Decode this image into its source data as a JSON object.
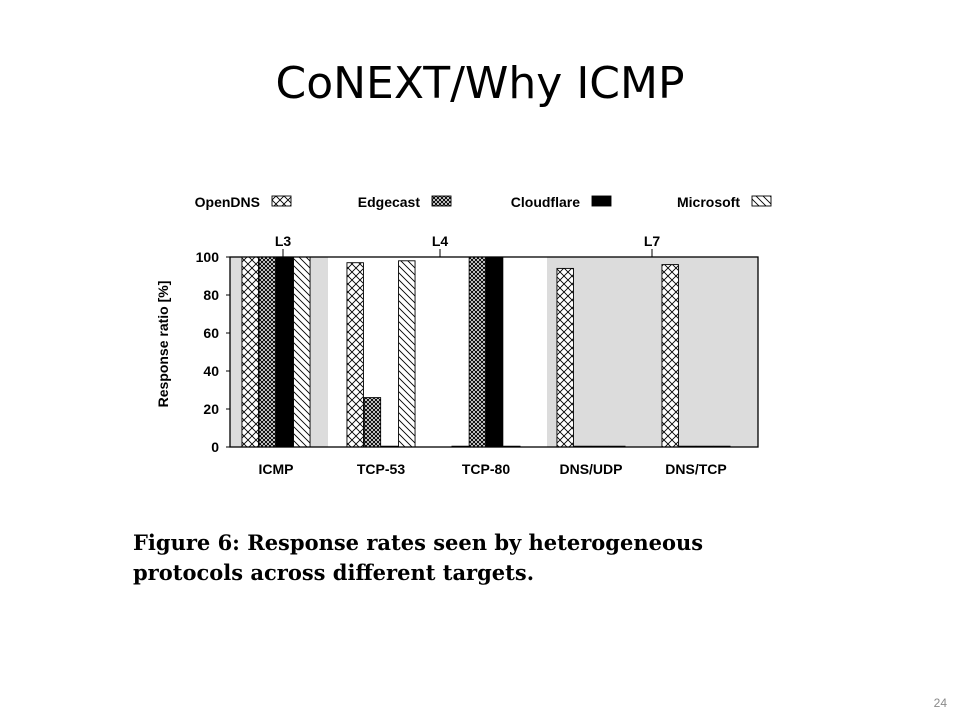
{
  "slide": {
    "title": "CoNEXT/Why ICMP",
    "caption_line1": "Figure 6: Response rates seen by heterogeneous",
    "caption_line2": "protocols across different targets.",
    "page_number": "24"
  },
  "chart_data": {
    "type": "bar",
    "ylabel": "Response ratio [%]",
    "ylim": [
      0,
      100
    ],
    "yticks": [
      0,
      20,
      40,
      60,
      80,
      100
    ],
    "categories": [
      "ICMP",
      "TCP-53",
      "TCP-80",
      "DNS/UDP",
      "DNS/TCP"
    ],
    "layers": [
      {
        "label": "L3",
        "categories": [
          "ICMP"
        ],
        "shaded": true
      },
      {
        "label": "L4",
        "categories": [
          "TCP-53",
          "TCP-80"
        ],
        "shaded": false
      },
      {
        "label": "L7",
        "categories": [
          "DNS/UDP",
          "DNS/TCP"
        ],
        "shaded": true
      }
    ],
    "legend_position": "top",
    "series": [
      {
        "name": "OpenDNS",
        "pattern": "crosshatch",
        "values": [
          100,
          97,
          0,
          94,
          96
        ]
      },
      {
        "name": "Edgecast",
        "pattern": "dense-crosshatch",
        "values": [
          100,
          26,
          100,
          0,
          0
        ]
      },
      {
        "name": "Cloudflare",
        "pattern": "solid",
        "values": [
          100,
          0,
          100,
          0,
          0
        ]
      },
      {
        "name": "Microsoft",
        "pattern": "diagonal",
        "values": [
          100,
          98,
          0,
          0,
          0
        ]
      }
    ],
    "colors": {
      "shading": "#dcdcdc",
      "bar_fill": "#ffffff",
      "solid": "#000000"
    }
  }
}
